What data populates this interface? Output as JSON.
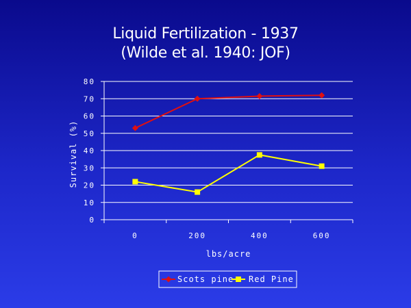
{
  "title_lines": [
    "Liquid Fertilization - 1937",
    "(Wilde et al. 1940: JOF)"
  ],
  "colors": {
    "background_top": "#0a0a8c",
    "background_bottom": "#2b3ce8",
    "grid": "#ffffff",
    "scots_pine": "#e01010",
    "red_pine": "#ffff00"
  },
  "chart_data": {
    "type": "line",
    "categories": [
      "0",
      "200",
      "400",
      "600"
    ],
    "xlabel": "lbs/acre",
    "ylabel": "Survival (%)",
    "ylim": [
      0,
      80
    ],
    "yticks": [
      0,
      10,
      20,
      30,
      40,
      50,
      60,
      70,
      80
    ],
    "grid": true,
    "legend_position": "bottom",
    "series": [
      {
        "name": "Scots pine",
        "values": [
          53,
          70,
          71.5,
          72
        ],
        "color": "#e01010",
        "marker": "diamond"
      },
      {
        "name": "Red Pine",
        "values": [
          22,
          16,
          37.5,
          31
        ],
        "color": "#ffff00",
        "marker": "square"
      }
    ]
  }
}
